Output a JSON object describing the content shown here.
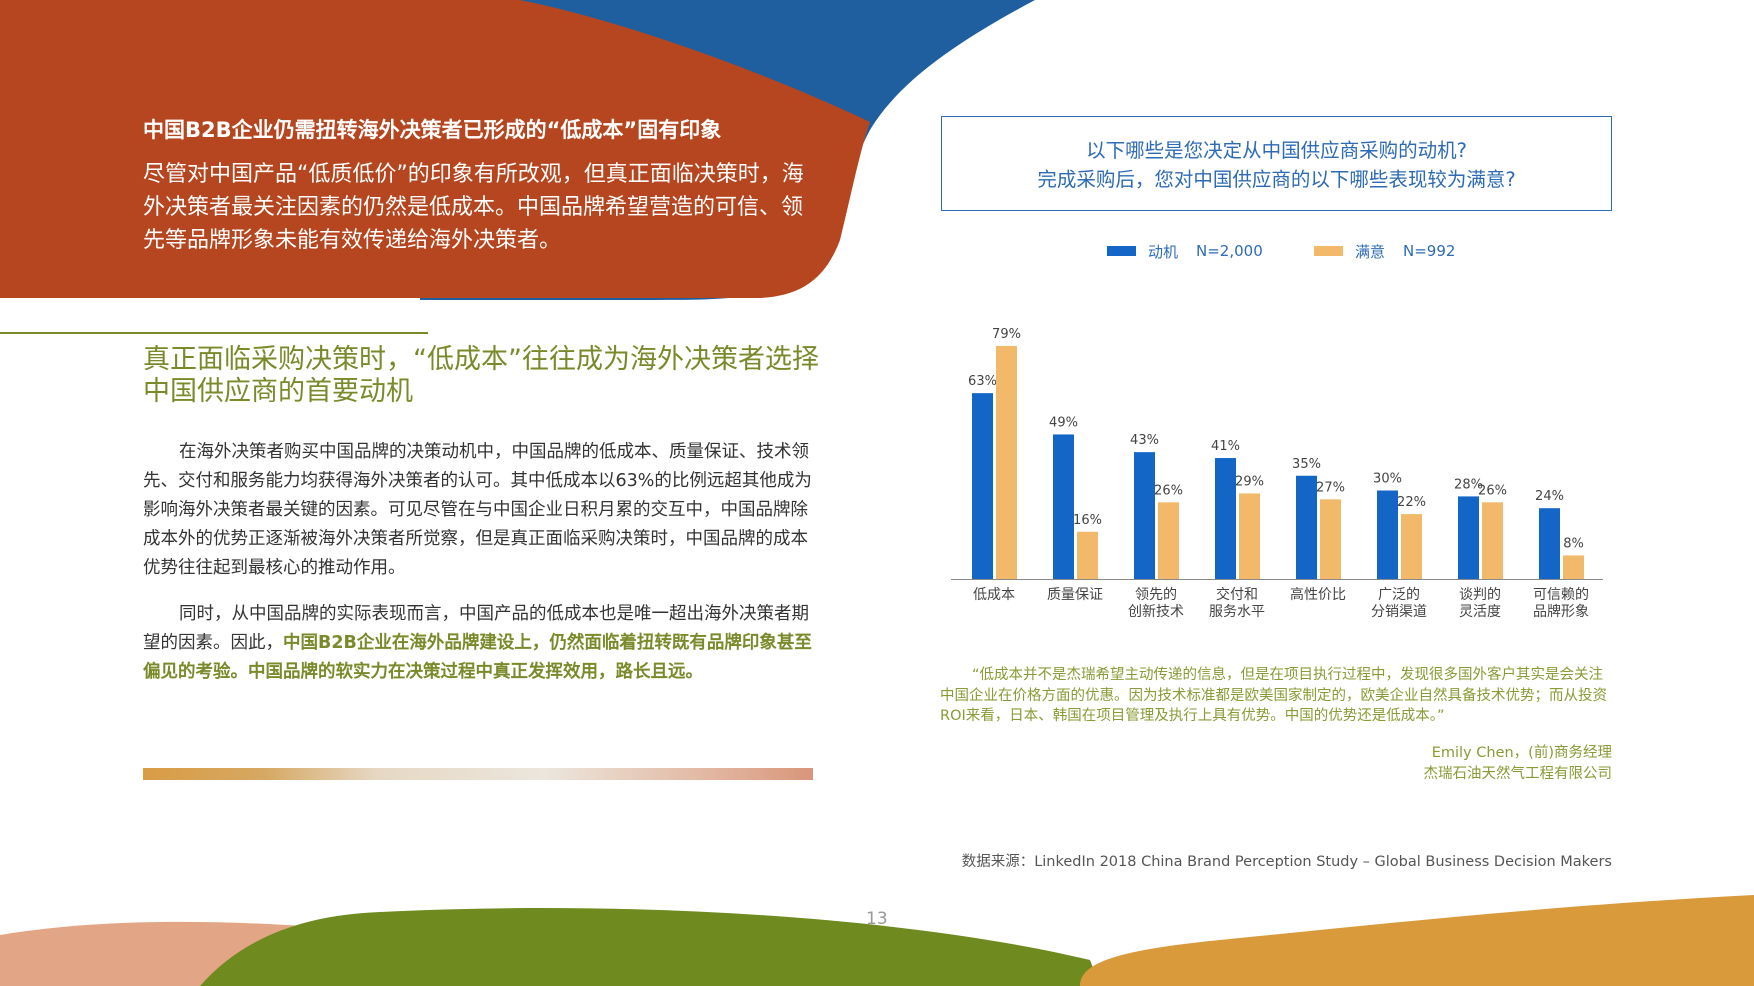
{
  "hero": {
    "title": "中国B2B企业仍需扭转海外决策者已形成的“低成本”固有印象",
    "text": "尽管对中国产品“低质低价”的印象有所改观，但真正面临决策时，海外决策者最关注因素的仍然是低成本。中国品牌希望营造的可信、领先等品牌形象未能有效传递给海外决策者。"
  },
  "section": {
    "heading": "真正面临采购决策时，“低成本”往往成为海外决策者选择中国供应商的首要动机",
    "para1": "在海外决策者购买中国品牌的决策动机中，中国品牌的低成本、质量保证、技术领先、交付和服务能力均获得海外决策者的认可。其中低成本以63%的比例远超其他成为影响海外决策者最关键的因素。可见尽管在与中国企业日积月累的交互中，中国品牌除成本外的优势正逐渐被海外决策者所觉察，但是真正面临采购决策时，中国品牌的成本优势往往起到最核心的推动作用。",
    "para2_plain": "同时，从中国品牌的实际表现而言，中国产品的低成本也是唯一超出海外决策者期望的因素。因此，",
    "para2_bold": "中国B2B企业在海外品牌建设上，仍然面临着扭转既有品牌印象甚至偏见的考验。中国品牌的软实力在决策过程中真正发挥效用，路长且远。"
  },
  "question": {
    "line1": "以下哪些是您决定从中国供应商采购的动机?",
    "line2": "完成采购后，您对中国供应商的以下哪些表现较为满意?"
  },
  "colors": {
    "motive": "#1466c6",
    "satisfy": "#f2b96a",
    "accent_green": "#7a8a2a",
    "accent_blue": "#2e6bb5"
  },
  "legend": {
    "motive_label": "动机",
    "motive_n": "N=2,000",
    "satisfy_label": "满意",
    "satisfy_n": "N=992"
  },
  "chart_data": {
    "type": "bar",
    "categories": [
      "低成本",
      "质量保证",
      "领先的\n创新技术",
      "交付和\n服务水平",
      "高性价比",
      "广泛的\n分销渠道",
      "谈判的\n灵活度",
      "可信赖的\n品牌形象"
    ],
    "series": [
      {
        "name": "动机",
        "n": "N=2,000",
        "values": [
          63,
          49,
          43,
          41,
          35,
          30,
          28,
          24
        ]
      },
      {
        "name": "满意",
        "n": "N=992",
        "values": [
          79,
          16,
          26,
          29,
          27,
          22,
          26,
          8
        ]
      }
    ],
    "value_format": "%",
    "ylim": [
      0,
      80
    ],
    "grid": false,
    "legend_position": "top"
  },
  "quote": {
    "text": "“低成本并不是杰瑞希望主动传递的信息，但是在项目执行过程中，发现很多国外客户其实是会关注中国企业在价格方面的优惠。因为技术标准都是欧美国家制定的，欧美企业自然具备技术优势；而从投资ROI来看，日本、韩国在项目管理及执行上具有优势。中国的优势还是低成本。”",
    "author": "Emily Chen，(前)商务经理",
    "company": "杰瑞石油天然气工程有限公司"
  },
  "source": "数据来源：LinkedIn 2018 China Brand Perception Study – Global Business Decision Makers",
  "page_number": "13"
}
